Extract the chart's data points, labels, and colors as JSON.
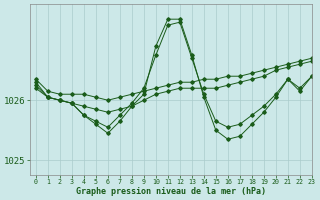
{
  "title": "Graphe pression niveau de la mer (hPa)",
  "background_color": "#cce8e8",
  "grid_color": "#aacccc",
  "line_color": "#1a5c1a",
  "xlim": [
    -0.5,
    23
  ],
  "ylim": [
    1024.75,
    1027.6
  ],
  "yticks": [
    1025,
    1026
  ],
  "xticks": [
    0,
    1,
    2,
    3,
    4,
    5,
    6,
    7,
    8,
    9,
    10,
    11,
    12,
    13,
    14,
    15,
    16,
    17,
    18,
    19,
    20,
    21,
    22,
    23
  ],
  "hours": [
    0,
    1,
    2,
    3,
    4,
    5,
    6,
    7,
    8,
    9,
    10,
    11,
    12,
    13,
    14,
    15,
    16,
    17,
    18,
    19,
    20,
    21,
    22,
    23
  ],
  "line1": [
    1026.35,
    1026.15,
    1026.1,
    1026.1,
    1026.1,
    1026.05,
    1026.0,
    1026.05,
    1026.1,
    1026.15,
    1026.2,
    1026.25,
    1026.3,
    1026.3,
    1026.35,
    1026.35,
    1026.4,
    1026.4,
    1026.45,
    1026.5,
    1026.55,
    1026.6,
    1026.65,
    1026.7
  ],
  "line2": [
    1026.2,
    1026.05,
    1026.0,
    1025.95,
    1025.9,
    1025.85,
    1025.8,
    1025.85,
    1025.9,
    1026.0,
    1026.1,
    1026.15,
    1026.2,
    1026.2,
    1026.2,
    1026.2,
    1026.25,
    1026.3,
    1026.35,
    1026.4,
    1026.5,
    1026.55,
    1026.6,
    1026.65
  ],
  "line3": [
    1026.25,
    1026.05,
    1026.0,
    1025.95,
    1025.75,
    1025.65,
    1025.55,
    1025.75,
    1025.95,
    1026.2,
    1026.75,
    1027.25,
    1027.3,
    1026.7,
    1026.1,
    1025.65,
    1025.55,
    1025.6,
    1025.75,
    1025.9,
    1026.1,
    1026.35,
    1026.2,
    1026.4
  ],
  "line4": [
    1026.3,
    1026.05,
    1026.0,
    1025.95,
    1025.75,
    1025.6,
    1025.45,
    1025.65,
    1025.9,
    1026.1,
    1026.9,
    1027.35,
    1027.35,
    1026.75,
    1026.05,
    1025.5,
    1025.35,
    1025.4,
    1025.6,
    1025.8,
    1026.05,
    1026.35,
    1026.15,
    1026.4
  ]
}
